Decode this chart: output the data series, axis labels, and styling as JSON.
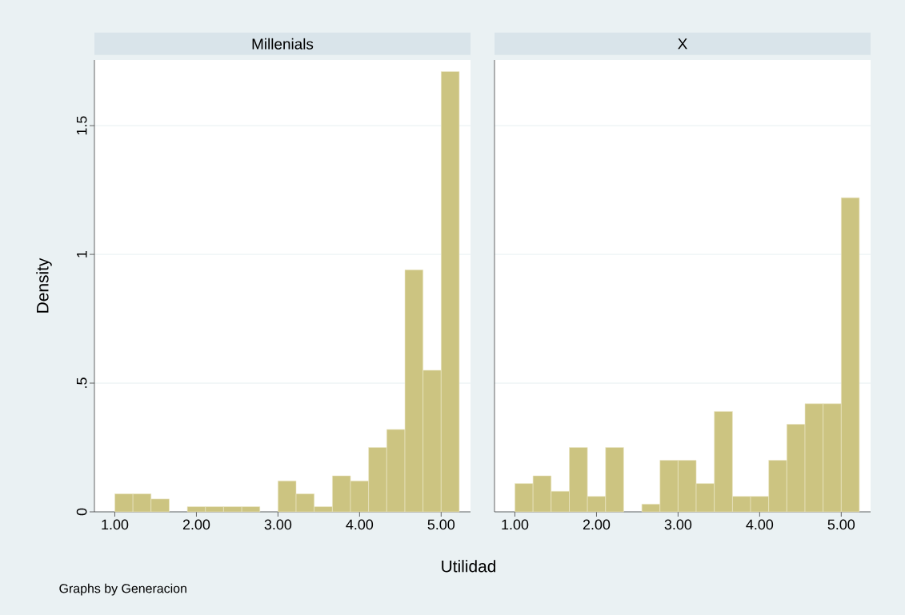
{
  "chart_data": [
    {
      "type": "histogram",
      "title": "Millenials",
      "xlabel": "Utilidad",
      "ylabel": "Density",
      "annotations": [
        "Graphs by Generacion"
      ],
      "color": "#ccc481",
      "grid": "y",
      "bins": [
        1,
        1.222,
        1.444,
        1.667,
        1.889,
        2.111,
        2.333,
        2.556,
        2.778,
        3,
        3.222,
        3.444,
        3.667,
        3.889,
        4.111,
        4.333,
        4.556,
        4.778,
        5,
        5.222
      ],
      "values": [
        0.07,
        0.07,
        0.05,
        0,
        0.02,
        0.02,
        0.02,
        0.02,
        0,
        0.12,
        0.07,
        0.02,
        0.14,
        0.12,
        0.25,
        0.32,
        0.94,
        0.55,
        1.71
      ],
      "xlim": [
        0.75,
        5.36
      ],
      "ylim": [
        0,
        1.755
      ],
      "xticks": [
        {
          "value": 1,
          "label": "1.00"
        },
        {
          "value": 2,
          "label": "2.00"
        },
        {
          "value": 3,
          "label": "3.00"
        },
        {
          "value": 4,
          "label": "4.00"
        },
        {
          "value": 5,
          "label": "5.00"
        }
      ],
      "yticks": [
        0,
        {
          "value": 0.5,
          "label": ".5"
        },
        1,
        1.5
      ]
    },
    {
      "type": "histogram",
      "title": "X",
      "color": "#ccc481",
      "grid": "y",
      "tick_labels": "x",
      "bins": [
        1,
        1.222,
        1.444,
        1.667,
        1.889,
        2.111,
        2.333,
        2.556,
        2.778,
        3,
        3.222,
        3.444,
        3.667,
        3.889,
        4.111,
        4.333,
        4.556,
        4.778,
        5,
        5.222
      ],
      "values": [
        0.11,
        0.14,
        0.08,
        0.25,
        0.06,
        0.25,
        0,
        0.03,
        0.2,
        0.2,
        0.11,
        0.39,
        0.06,
        0.06,
        0.2,
        0.34,
        0.42,
        0.42,
        1.22
      ],
      "xlim": [
        0.75,
        5.36
      ],
      "ylim": [
        0,
        1.755
      ],
      "xticks": [
        {
          "value": 1,
          "label": "1.00"
        },
        {
          "value": 2,
          "label": "2.00"
        },
        {
          "value": 3,
          "label": "3.00"
        },
        {
          "value": 4,
          "label": "4.00"
        },
        {
          "value": 5,
          "label": "5.00"
        }
      ],
      "yticks": [
        0,
        0.5,
        1,
        1.5
      ]
    }
  ]
}
